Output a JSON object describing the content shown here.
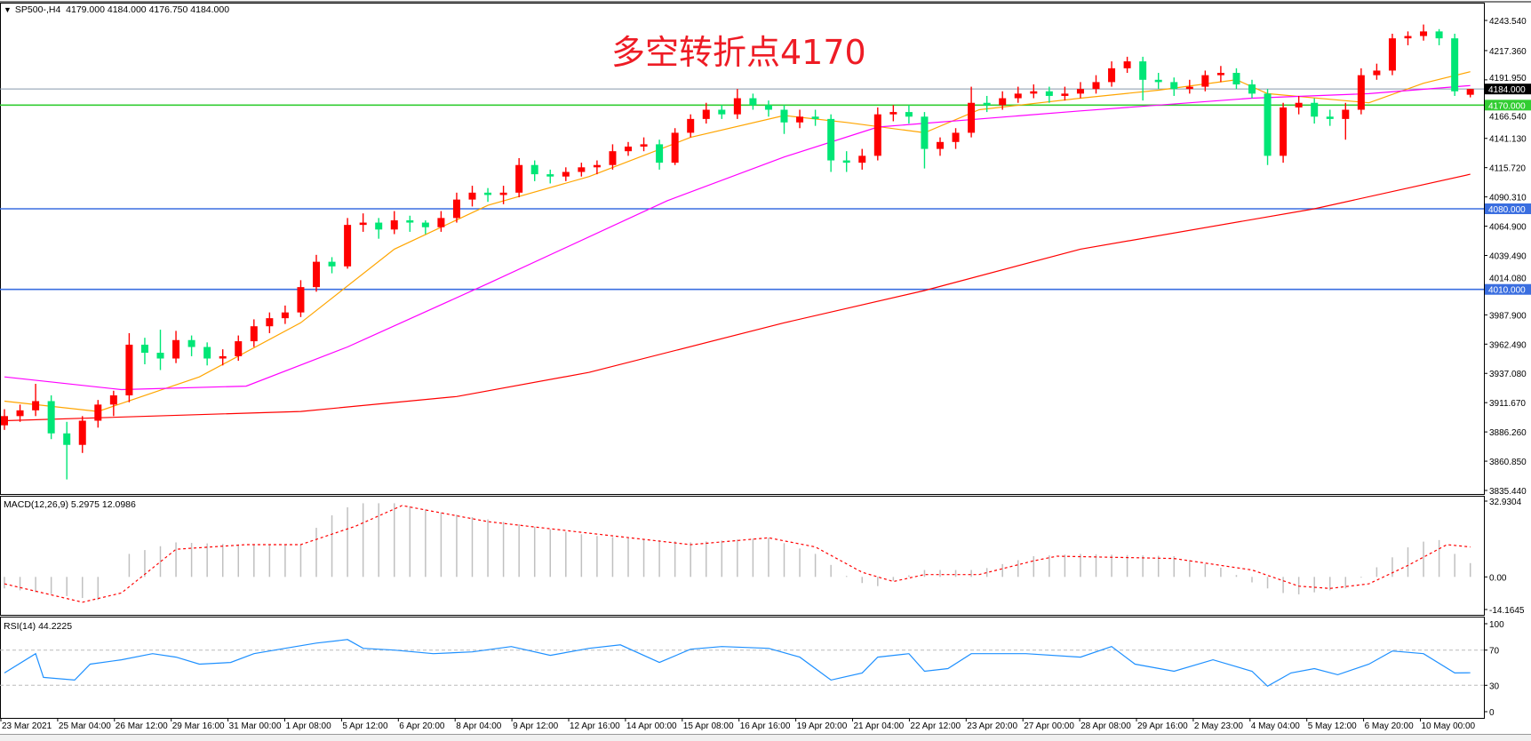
{
  "header": {
    "symbol": "SP500-,H4",
    "ohlc": "4179.000 4184.000 4176.750 4184.000"
  },
  "annotation": "多空转折点4170",
  "colors": {
    "bull": "#ff0000",
    "bear": "#00e676",
    "ma_fast": "#ffa500",
    "ma_mid": "#ff00ff",
    "ma_slow": "#ff0000",
    "support_line": "#3a6ee0",
    "pivot_line": "#32cd32",
    "price_line": "#8899aa",
    "macd_hist": "#c0c0c0",
    "macd_signal": "#ff0000",
    "rsi": "#1e90ff"
  },
  "chart_data": [
    {
      "type": "candlestick",
      "title": "SP500-,H4",
      "ylim": [
        3835.44,
        4243.54
      ],
      "y_ticks": [
        "4243.540",
        "4217.360",
        "4191.950",
        "4166.540",
        "4141.130",
        "4115.720",
        "4090.310",
        "4064.900",
        "4039.490",
        "4014.080",
        "3987.900",
        "3962.490",
        "3937.080",
        "3911.670",
        "3886.260",
        "3860.850",
        "3835.440"
      ],
      "x_ticks": [
        "23 Mar 2021",
        "25 Mar 04:00",
        "26 Mar 12:00",
        "29 Mar 16:00",
        "31 Mar 00:00",
        "1 Apr 08:00",
        "5 Apr 12:00",
        "6 Apr 20:00",
        "8 Apr 04:00",
        "9 Apr 12:00",
        "12 Apr 16:00",
        "14 Apr 00:00",
        "15 Apr 08:00",
        "16 Apr 16:00",
        "19 Apr 20:00",
        "21 Apr 04:00",
        "22 Apr 12:00",
        "23 Apr 20:00",
        "27 Apr 00:00",
        "28 Apr 08:00",
        "29 Apr 16:00",
        "2 May 23:00",
        "4 May 04:00",
        "5 May 12:00",
        "6 May 20:00",
        "10 May 00:00"
      ],
      "ohlc": [
        [
          3892,
          3906,
          3888,
          3900
        ],
        [
          3900,
          3910,
          3895,
          3905
        ],
        [
          3905,
          3928,
          3900,
          3913
        ],
        [
          3913,
          3918,
          3880,
          3885
        ],
        [
          3885,
          3895,
          3845,
          3875
        ],
        [
          3875,
          3900,
          3868,
          3896
        ],
        [
          3896,
          3914,
          3890,
          3910
        ],
        [
          3910,
          3922,
          3900,
          3918
        ],
        [
          3918,
          3972,
          3912,
          3962
        ],
        [
          3962,
          3968,
          3945,
          3955
        ],
        [
          3955,
          3975,
          3940,
          3950
        ],
        [
          3950,
          3974,
          3946,
          3966
        ],
        [
          3966,
          3970,
          3952,
          3960
        ],
        [
          3960,
          3964,
          3944,
          3950
        ],
        [
          3950,
          3958,
          3944,
          3952
        ],
        [
          3952,
          3970,
          3948,
          3965
        ],
        [
          3965,
          3984,
          3960,
          3978
        ],
        [
          3978,
          3990,
          3972,
          3985
        ],
        [
          3985,
          3996,
          3980,
          3990
        ],
        [
          3990,
          4018,
          3986,
          4012
        ],
        [
          4012,
          4040,
          4008,
          4034
        ],
        [
          4034,
          4038,
          4024,
          4030
        ],
        [
          4030,
          4072,
          4028,
          4066
        ],
        [
          4066,
          4076,
          4060,
          4068
        ],
        [
          4068,
          4072,
          4054,
          4062
        ],
        [
          4062,
          4078,
          4058,
          4070
        ],
        [
          4070,
          4074,
          4060,
          4068
        ],
        [
          4068,
          4070,
          4058,
          4064
        ],
        [
          4064,
          4078,
          4060,
          4072
        ],
        [
          4072,
          4094,
          4068,
          4088
        ],
        [
          4088,
          4100,
          4082,
          4094
        ],
        [
          4094,
          4098,
          4086,
          4092
        ],
        [
          4092,
          4100,
          4084,
          4094
        ],
        [
          4094,
          4124,
          4090,
          4118
        ],
        [
          4118,
          4122,
          4104,
          4110
        ],
        [
          4110,
          4114,
          4102,
          4108
        ],
        [
          4108,
          4116,
          4104,
          4112
        ],
        [
          4112,
          4120,
          4108,
          4116
        ],
        [
          4116,
          4122,
          4110,
          4118
        ],
        [
          4118,
          4136,
          4114,
          4130
        ],
        [
          4130,
          4138,
          4126,
          4134
        ],
        [
          4134,
          4142,
          4130,
          4136
        ],
        [
          4136,
          4140,
          4114,
          4120
        ],
        [
          4120,
          4150,
          4118,
          4146
        ],
        [
          4146,
          4162,
          4142,
          4158
        ],
        [
          4158,
          4172,
          4154,
          4166
        ],
        [
          4166,
          4170,
          4158,
          4162
        ],
        [
          4162,
          4184,
          4158,
          4176
        ],
        [
          4176,
          4180,
          4166,
          4170
        ],
        [
          4170,
          4174,
          4160,
          4166
        ],
        [
          4166,
          4170,
          4145,
          4155
        ],
        [
          4155,
          4166,
          4150,
          4160
        ],
        [
          4160,
          4166,
          4152,
          4158
        ],
        [
          4158,
          4162,
          4112,
          4122
        ],
        [
          4122,
          4130,
          4112,
          4120
        ],
        [
          4120,
          4132,
          4114,
          4126
        ],
        [
          4126,
          4168,
          4122,
          4162
        ],
        [
          4162,
          4170,
          4156,
          4164
        ],
        [
          4164,
          4170,
          4154,
          4160
        ],
        [
          4160,
          4164,
          4115,
          4132
        ],
        [
          4132,
          4142,
          4126,
          4138
        ],
        [
          4138,
          4150,
          4132,
          4146
        ],
        [
          4146,
          4186,
          4142,
          4172
        ],
        [
          4172,
          4178,
          4164,
          4170
        ],
        [
          4170,
          4182,
          4166,
          4176
        ],
        [
          4176,
          4186,
          4172,
          4180
        ],
        [
          4180,
          4188,
          4176,
          4182
        ],
        [
          4182,
          4186,
          4172,
          4178
        ],
        [
          4178,
          4186,
          4174,
          4180
        ],
        [
          4180,
          4190,
          4176,
          4184
        ],
        [
          4184,
          4196,
          4180,
          4190
        ],
        [
          4190,
          4208,
          4186,
          4202
        ],
        [
          4202,
          4212,
          4198,
          4208
        ],
        [
          4208,
          4212,
          4174,
          4192
        ],
        [
          4192,
          4198,
          4184,
          4190
        ],
        [
          4190,
          4194,
          4178,
          4184
        ],
        [
          4184,
          4192,
          4180,
          4186
        ],
        [
          4186,
          4200,
          4182,
          4196
        ],
        [
          4196,
          4204,
          4190,
          4198
        ],
        [
          4198,
          4202,
          4184,
          4188
        ],
        [
          4188,
          4192,
          4176,
          4180
        ],
        [
          4180,
          4184,
          4118,
          4126
        ],
        [
          4126,
          4172,
          4120,
          4168
        ],
        [
          4168,
          4178,
          4162,
          4172
        ],
        [
          4172,
          4176,
          4154,
          4160
        ],
        [
          4160,
          4166,
          4152,
          4158
        ],
        [
          4158,
          4172,
          4140,
          4166
        ],
        [
          4166,
          4202,
          4162,
          4196
        ],
        [
          4196,
          4206,
          4192,
          4200
        ],
        [
          4200,
          4232,
          4196,
          4228
        ],
        [
          4228,
          4234,
          4222,
          4230
        ],
        [
          4230,
          4240,
          4226,
          4234
        ],
        [
          4234,
          4236,
          4222,
          4228
        ],
        [
          4228,
          4232,
          4178,
          4182
        ],
        [
          4179,
          4184,
          4176.75,
          4184
        ]
      ],
      "moving_averages": [
        {
          "color_key": "ma_fast",
          "points": [
            [
              0,
              3913
            ],
            [
              6,
              3904
            ],
            [
              12.5,
              3934
            ],
            [
              19,
              3981
            ],
            [
              25,
              4045
            ],
            [
              31,
              4083
            ],
            [
              37.5,
              4108
            ],
            [
              44,
              4142
            ],
            [
              50,
              4161
            ],
            [
              54,
              4155
            ],
            [
              59,
              4146
            ],
            [
              62.5,
              4166
            ],
            [
              69,
              4176
            ],
            [
              74,
              4183
            ],
            [
              79,
              4192
            ],
            [
              81,
              4180
            ],
            [
              87.5,
              4172
            ],
            [
              91,
              4189
            ],
            [
              94,
              4199
            ]
          ]
        },
        {
          "color_key": "ma_mid",
          "points": [
            [
              0,
              3934
            ],
            [
              7.5,
              3923
            ],
            [
              15.5,
              3926
            ],
            [
              22,
              3960
            ],
            [
              31,
              4015
            ],
            [
              42.5,
              4087
            ],
            [
              50,
              4125
            ],
            [
              56,
              4151
            ],
            [
              69,
              4165
            ],
            [
              80,
              4176
            ],
            [
              87.5,
              4180
            ],
            [
              94,
              4187
            ]
          ]
        },
        {
          "color_key": "ma_slow",
          "points": [
            [
              0,
              3896
            ],
            [
              19,
              3904
            ],
            [
              29,
              3917
            ],
            [
              37.5,
              3938
            ],
            [
              50,
              3981
            ],
            [
              59,
              4009
            ],
            [
              69,
              4045
            ],
            [
              84,
              4080
            ],
            [
              94,
              4110
            ]
          ]
        }
      ],
      "horizontal_lines": [
        {
          "value": 4184.0,
          "label": "4184.000",
          "color_key": "price_line"
        },
        {
          "value": 4170.0,
          "label": "4170.000",
          "color_key": "pivot_line"
        },
        {
          "value": 4080.0,
          "label": "4080.000",
          "color_key": "support_line"
        },
        {
          "value": 4010.0,
          "label": "4010.000",
          "color_key": "support_line"
        }
      ]
    },
    {
      "type": "bar+line",
      "title": "MACD(12,26,9) 5.2975 12.0986",
      "ylim": [
        -14.1645,
        32.9304
      ],
      "y_ticks": [
        "32.9304",
        "0.00",
        "-14.1645"
      ],
      "histogram_points": [
        [
          0,
          -5
        ],
        [
          6,
          -10
        ],
        [
          8,
          10
        ],
        [
          11,
          15
        ],
        [
          15.5,
          14
        ],
        [
          19,
          14
        ],
        [
          20.5,
          25
        ],
        [
          22.5,
          32
        ],
        [
          25,
          32
        ],
        [
          28,
          28
        ],
        [
          31,
          25
        ],
        [
          37.5,
          18
        ],
        [
          44,
          15
        ],
        [
          49,
          17
        ],
        [
          52,
          10
        ],
        [
          54.5,
          -2
        ],
        [
          56,
          -4
        ],
        [
          59,
          3
        ],
        [
          62.5,
          3
        ],
        [
          66,
          9
        ],
        [
          69,
          10
        ],
        [
          75,
          9
        ],
        [
          78,
          4
        ],
        [
          80.5,
          -4
        ],
        [
          82.5,
          -8
        ],
        [
          86,
          -5
        ],
        [
          87.5,
          2
        ],
        [
          90.5,
          15
        ],
        [
          92,
          16
        ],
        [
          93,
          10
        ],
        [
          94,
          6
        ]
      ],
      "signal_points": [
        [
          0,
          -3
        ],
        [
          5,
          -11
        ],
        [
          7.5,
          -7
        ],
        [
          11,
          12
        ],
        [
          15.5,
          14
        ],
        [
          19,
          14
        ],
        [
          22.5,
          22
        ],
        [
          25.5,
          31
        ],
        [
          31,
          24
        ],
        [
          37.5,
          19
        ],
        [
          44,
          14
        ],
        [
          49,
          17
        ],
        [
          52,
          13
        ],
        [
          55,
          2
        ],
        [
          57,
          -2
        ],
        [
          59,
          1
        ],
        [
          62.5,
          1
        ],
        [
          66,
          7
        ],
        [
          67.5,
          9
        ],
        [
          75,
          8
        ],
        [
          80,
          3
        ],
        [
          83,
          -4
        ],
        [
          85,
          -5
        ],
        [
          87.5,
          -3
        ],
        [
          90,
          5
        ],
        [
          92.5,
          14
        ],
        [
          94,
          13
        ]
      ]
    },
    {
      "type": "line",
      "title": "RSI(14) 44.2225",
      "ylim": [
        0,
        100
      ],
      "y_ticks": [
        "100",
        "70",
        "30",
        "0"
      ],
      "levels": [
        70,
        30
      ],
      "points": [
        [
          0,
          44
        ],
        [
          2,
          66
        ],
        [
          2.5,
          39
        ],
        [
          4.5,
          36
        ],
        [
          5.5,
          54
        ],
        [
          7.5,
          59
        ],
        [
          9.5,
          66
        ],
        [
          11,
          62
        ],
        [
          12.5,
          54
        ],
        [
          14.5,
          56
        ],
        [
          16,
          66
        ],
        [
          18,
          72
        ],
        [
          20,
          78
        ],
        [
          22,
          82
        ],
        [
          23,
          72
        ],
        [
          25,
          70
        ],
        [
          27.5,
          66
        ],
        [
          30,
          68
        ],
        [
          32.5,
          74
        ],
        [
          35,
          64
        ],
        [
          37.5,
          72
        ],
        [
          39.5,
          76
        ],
        [
          42,
          56
        ],
        [
          44,
          71
        ],
        [
          46,
          74
        ],
        [
          49,
          72
        ],
        [
          51,
          62
        ],
        [
          53,
          36
        ],
        [
          55,
          44
        ],
        [
          56,
          62
        ],
        [
          58,
          66
        ],
        [
          59,
          46
        ],
        [
          60.5,
          49
        ],
        [
          62,
          66
        ],
        [
          65.5,
          66
        ],
        [
          69,
          62
        ],
        [
          71,
          74
        ],
        [
          72.5,
          54
        ],
        [
          75,
          46
        ],
        [
          77.5,
          59
        ],
        [
          80,
          46
        ],
        [
          81,
          29
        ],
        [
          82.5,
          44
        ],
        [
          84,
          49
        ],
        [
          85.5,
          42
        ],
        [
          87.5,
          54
        ],
        [
          89,
          69
        ],
        [
          91,
          66
        ],
        [
          93,
          44
        ],
        [
          94,
          44.2
        ]
      ]
    }
  ]
}
